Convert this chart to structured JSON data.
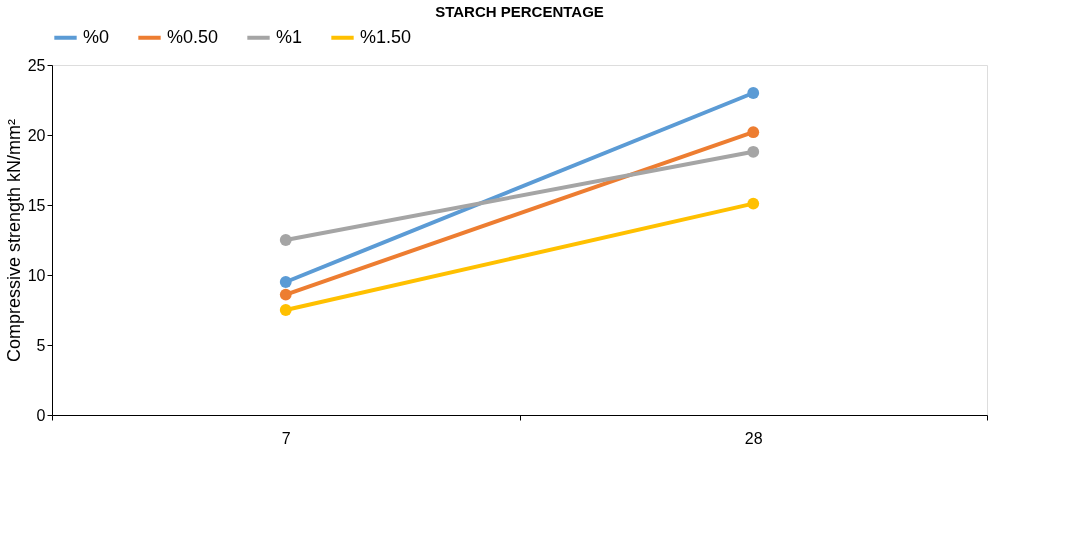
{
  "chart_data": {
    "type": "line",
    "title": "STARCH PERCENTAGE",
    "ylabel": "Compressive strength kN/mm²",
    "categories": [
      "7",
      "28"
    ],
    "series": [
      {
        "name": "%0",
        "color": "#5b9bd5",
        "values": [
          9.5,
          23.0
        ]
      },
      {
        "name": "%0.50",
        "color": "#ed7d31",
        "values": [
          8.6,
          20.2
        ]
      },
      {
        "name": "%1",
        "color": "#a5a5a5",
        "values": [
          12.5,
          18.8
        ]
      },
      {
        "name": "%1.50",
        "color": "#ffc000",
        "values": [
          7.5,
          15.1
        ]
      }
    ],
    "ylim": [
      0,
      25
    ],
    "yticks": [
      0,
      5,
      10,
      15,
      20,
      25
    ],
    "grid": false,
    "legend": "top",
    "marker": "circle",
    "line_style": "solid"
  }
}
